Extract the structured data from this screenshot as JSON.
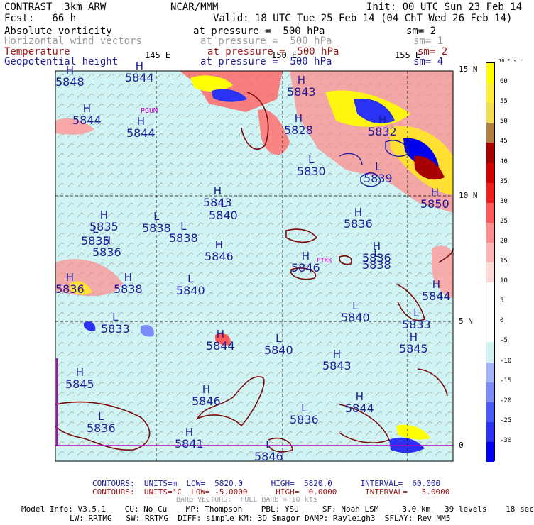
{
  "header": {
    "title": "CONTRAST  3km ARW",
    "center": "NCAR/MMM",
    "init": "Init: 00 UTC Sun 23 Feb 14",
    "fcst": "Fcst:   66 h",
    "valid": "Valid: 18 UTC Tue 25 Feb 14 (04 ChT Wed 26 Feb 14)"
  },
  "fields": [
    {
      "name": "Absolute vorticity",
      "pressure": "at pressure =  500 hPa",
      "sm": "sm= 2",
      "color": "#000000"
    },
    {
      "name": "Horizontal wind vectors",
      "pressure": "at pressure =  500 hPa",
      "sm": "sm= 1",
      "color": "#9a9a9a"
    },
    {
      "name": "Temperature",
      "pressure": "at pressure =  500 hPa",
      "sm": "sm= 2",
      "color": "#a01818"
    },
    {
      "name": "Geopotential height",
      "pressure": "at pressure =  500 hPa",
      "sm": "sm= 4",
      "color": "#1c1c9c"
    }
  ],
  "map": {
    "lon_labels": [
      "145 E",
      "150 E",
      "155 E"
    ],
    "lat_labels": [
      "15 N",
      "10 N",
      "5 N",
      "0"
    ],
    "places": [
      "PGUM",
      "PTKK"
    ],
    "centers": [
      {
        "type": "H",
        "value": "5844"
      },
      {
        "type": "H",
        "value": "5844"
      },
      {
        "type": "H",
        "value": "5844"
      },
      {
        "type": "H",
        "value": "5835"
      },
      {
        "type": "L",
        "value": "5840"
      },
      {
        "type": "L",
        "value": "5838"
      },
      {
        "type": "H",
        "value": "5836"
      },
      {
        "type": "H",
        "value": "5828"
      },
      {
        "type": "H",
        "value": "5832"
      },
      {
        "type": "L",
        "value": "5830"
      },
      {
        "type": "L",
        "value": "5839"
      },
      {
        "type": "L",
        "value": "5833"
      },
      {
        "type": "H",
        "value": "5843"
      },
      {
        "type": "L",
        "value": "5835"
      },
      {
        "type": "L",
        "value": "5838"
      },
      {
        "type": "H",
        "value": "5836"
      },
      {
        "type": "H",
        "value": "5836"
      },
      {
        "type": "H",
        "value": "5846"
      },
      {
        "type": "H",
        "value": "5846"
      },
      {
        "type": "L",
        "value": "5838"
      },
      {
        "type": "H",
        "value": "5836"
      },
      {
        "type": "H",
        "value": "5838"
      },
      {
        "type": "L",
        "value": "5840"
      },
      {
        "type": "H",
        "value": "5844"
      },
      {
        "type": "L",
        "value": "5833"
      },
      {
        "type": "L",
        "value": "5840"
      },
      {
        "type": "H",
        "value": "5844"
      },
      {
        "type": "L",
        "value": "5840"
      },
      {
        "type": "H",
        "value": "5843"
      },
      {
        "type": "H",
        "value": "5845"
      },
      {
        "type": "H",
        "value": "5845"
      },
      {
        "type": "H",
        "value": "5846"
      },
      {
        "type": "L",
        "value": "5836"
      },
      {
        "type": "H",
        "value": "5844"
      },
      {
        "type": "L",
        "value": "5836"
      },
      {
        "type": "H",
        "value": "5841"
      },
      {
        "type": "L",
        "value": "5846"
      },
      {
        "type": "H",
        "value": "5850"
      },
      {
        "type": "H",
        "value": "5848"
      },
      {
        "type": "H",
        "value": "5843"
      }
    ]
  },
  "colorbar": {
    "units": "10⁻⁵ s⁻¹",
    "levels": [
      "60",
      "55",
      "50",
      "45",
      "40",
      "35",
      "30",
      "25",
      "20",
      "15",
      "10",
      "5",
      "0",
      "-5",
      "-10",
      "-15",
      "-20",
      "-25",
      "-30"
    ],
    "colors": [
      "#ffff00",
      "#ffee33",
      "#f2dc50",
      "#b08040",
      "#a80000",
      "#d40000",
      "#ee1e1e",
      "#ff5a5a",
      "#ff8c8c",
      "#ffb4b4",
      "#ffd8d8",
      "#ffffff",
      "#ffffff",
      "#ffffff",
      "#d0f4f4",
      "#a4b4f8",
      "#7c8cf8",
      "#4a5af8",
      "#2a32f4",
      "#0000f0"
    ]
  },
  "footer": {
    "contours1_label": "CONTOURS:  UNITS=m  LOW=  5820.0      HIGH=  5820.0      INTERVAL=  60.000",
    "contours2_label": "CONTOURS:  UNITS=°C  LOW= -5.0000      HIGH=  0.0000      INTERVAL=   5.0000",
    "barb_label": "BARB VECTORS:  FULL BARB = 10 kts",
    "model_line1": "Model Info: V3.5.1    CU: No Cu    MP: Thompson    PBL: YSU     SF: Noah LSM     3.0 km   39 levels    18 sec",
    "model_line2": "LW: RRTMG   SW: RRTMG  DIFF: simple KM: 3D Smagor DAMP: Rayleigh3  SFLAY: Rev MM5"
  }
}
